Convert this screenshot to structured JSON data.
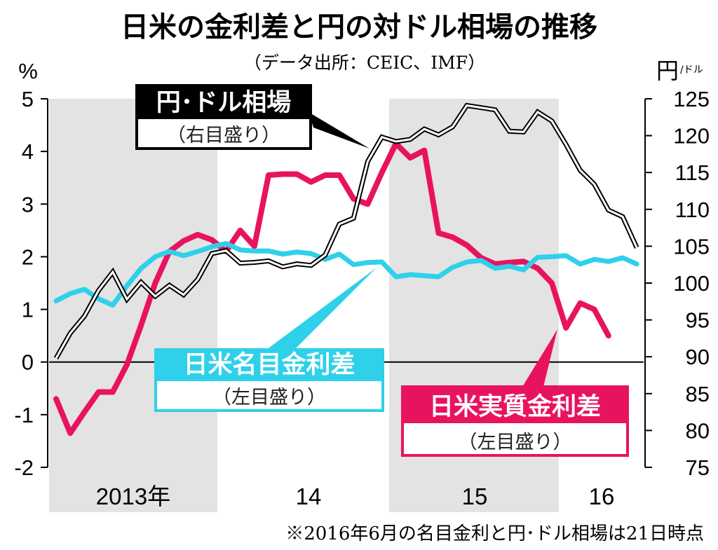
{
  "chart_data": {
    "type": "line",
    "title": "日米の金利差と円の対ドル相場の推移",
    "subtitle": "（データ出所：CEIC、IMF）",
    "footnote": "※2016年6月の名目金利と円･ドル相場は21日時点",
    "left_axis": {
      "unit": "%",
      "range": [
        -2,
        5
      ],
      "ticks": [
        "5",
        "4",
        "3",
        "2",
        "1",
        "0",
        "-1",
        "-2"
      ],
      "tick_values": [
        5,
        4,
        3,
        2,
        1,
        0,
        -1,
        -2
      ]
    },
    "right_axis": {
      "unit": "円",
      "unit_sub": "/ドル",
      "range": [
        75,
        125
      ],
      "ticks": [
        "125",
        "120",
        "115",
        "110",
        "105",
        "100",
        "95",
        "90",
        "85",
        "80",
        "75"
      ],
      "tick_values": [
        125,
        120,
        115,
        110,
        105,
        100,
        95,
        90,
        85,
        80,
        75
      ]
    },
    "x_labels": [
      "2013年",
      "14",
      "15",
      "16"
    ],
    "x_start": "2013-01",
    "x_frequency": "monthly",
    "grid": false,
    "series": [
      {
        "name": "円･ドル相場",
        "note": "（右目盛り）",
        "axis": "right",
        "color": "#000000",
        "values": [
          89.8,
          93.2,
          95.5,
          99.0,
          101.5,
          97.8,
          100.1,
          98.2,
          99.7,
          98.4,
          100.5,
          104.0,
          104.4,
          102.7,
          102.8,
          103.0,
          102.2,
          102.6,
          102.4,
          103.8,
          108.0,
          108.8,
          116.5,
          119.8,
          119.2,
          119.5,
          120.9,
          120.1,
          121.2,
          124.1,
          123.8,
          123.5,
          120.6,
          120.5,
          123.2,
          122.0,
          118.8,
          115.3,
          113.4,
          109.9,
          109.0,
          104.8
        ]
      },
      {
        "name": "日米名目金利差",
        "note": "（左目盛り）",
        "axis": "left",
        "color": "#2fd0ea",
        "values": [
          1.16,
          1.3,
          1.38,
          1.2,
          1.08,
          1.45,
          1.78,
          2.0,
          2.1,
          2.02,
          2.1,
          2.19,
          2.25,
          2.13,
          2.11,
          2.11,
          2.05,
          2.09,
          2.06,
          1.95,
          2.05,
          1.85,
          1.89,
          1.9,
          1.62,
          1.66,
          1.64,
          1.62,
          1.8,
          1.9,
          1.93,
          1.78,
          1.82,
          1.75,
          1.99,
          2.0,
          2.02,
          1.86,
          1.95,
          1.91,
          1.98,
          1.86
        ]
      },
      {
        "name": "日米実質金利差",
        "note": "（左目盛り）",
        "axis": "left",
        "color": "#e8135f",
        "values": [
          -0.7,
          -1.35,
          -0.95,
          -0.57,
          -0.57,
          -0.05,
          0.7,
          1.5,
          2.1,
          2.3,
          2.42,
          2.32,
          2.1,
          2.5,
          2.2,
          3.55,
          3.57,
          3.57,
          3.42,
          3.55,
          3.55,
          3.1,
          3.0,
          3.6,
          4.15,
          3.88,
          4.02,
          2.45,
          2.37,
          2.22,
          1.98,
          1.86,
          1.89,
          1.91,
          1.78,
          1.5,
          0.65,
          1.12,
          1.0,
          0.5
        ]
      }
    ]
  }
}
